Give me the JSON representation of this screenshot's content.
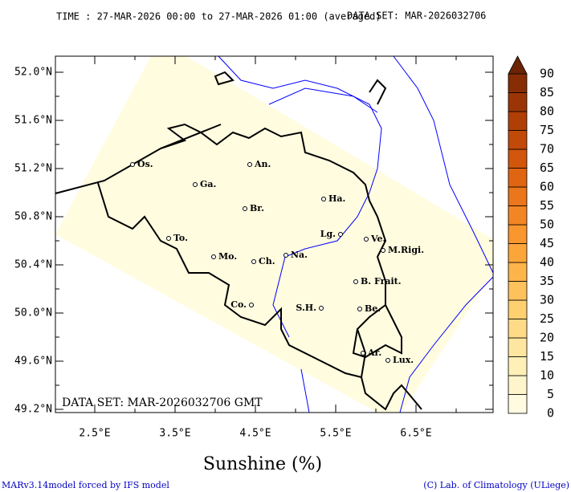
{
  "map": {
    "header": {
      "time": "TIME : 27-MAR-2026 00:00 to 27-MAR-2026 01:00 (averaged)",
      "dataset": "DATA SET: MAR-2026032706"
    },
    "lat_ticks": [
      {
        "value": 52.0,
        "label": "52.0°N"
      },
      {
        "value": 51.6,
        "label": "51.6°N"
      },
      {
        "value": 51.2,
        "label": "51.2°N"
      },
      {
        "value": 50.8,
        "label": "50.8°N"
      },
      {
        "value": 50.4,
        "label": "50.4°N"
      },
      {
        "value": 50.0,
        "label": "50.0°N"
      },
      {
        "value": 49.6,
        "label": "49.6°N"
      },
      {
        "value": 49.2,
        "label": "49.2°N"
      }
    ],
    "lon_ticks": [
      {
        "value": 2.5,
        "label": "2.5°E"
      },
      {
        "value": 3.5,
        "label": "3.5°E"
      },
      {
        "value": 4.5,
        "label": "4.5°E"
      },
      {
        "value": 5.5,
        "label": "5.5°E"
      },
      {
        "value": 6.5,
        "label": "6.5°E"
      }
    ],
    "cities": [
      "Os.",
      "Ga.",
      "An.",
      "Br.",
      "Ha.",
      "Lg.",
      "Ve.",
      "M.Rigi.",
      "To.",
      "Mo.",
      "Ch.",
      "Na.",
      "B. Frait.",
      "S.H.",
      "Be.",
      "Co.",
      "Ar.",
      "Lux."
    ],
    "inner_label": "DATA SET: MAR-2026032706 GMT",
    "title": "Sunshine (%)",
    "footer_left": "MARv3.14model forced by IFS model",
    "footer_right": "(C) Lab. of Climatology (ULiege)",
    "colorbar": {
      "ticks": [
        0,
        5,
        10,
        15,
        20,
        25,
        30,
        35,
        40,
        45,
        50,
        55,
        60,
        65,
        70,
        75,
        80,
        85,
        90
      ],
      "colors": [
        "#fffbe0",
        "#fff5cc",
        "#fff0b8",
        "#ffe6a0",
        "#ffdb88",
        "#ffd070",
        "#fec25c",
        "#fdb44a",
        "#fca63a",
        "#f9962e",
        "#f38624",
        "#ec761b",
        "#e06513",
        "#d2560c",
        "#c24a08",
        "#b03f06",
        "#9c3505",
        "#862d05",
        "#6b2404"
      ]
    }
  }
}
